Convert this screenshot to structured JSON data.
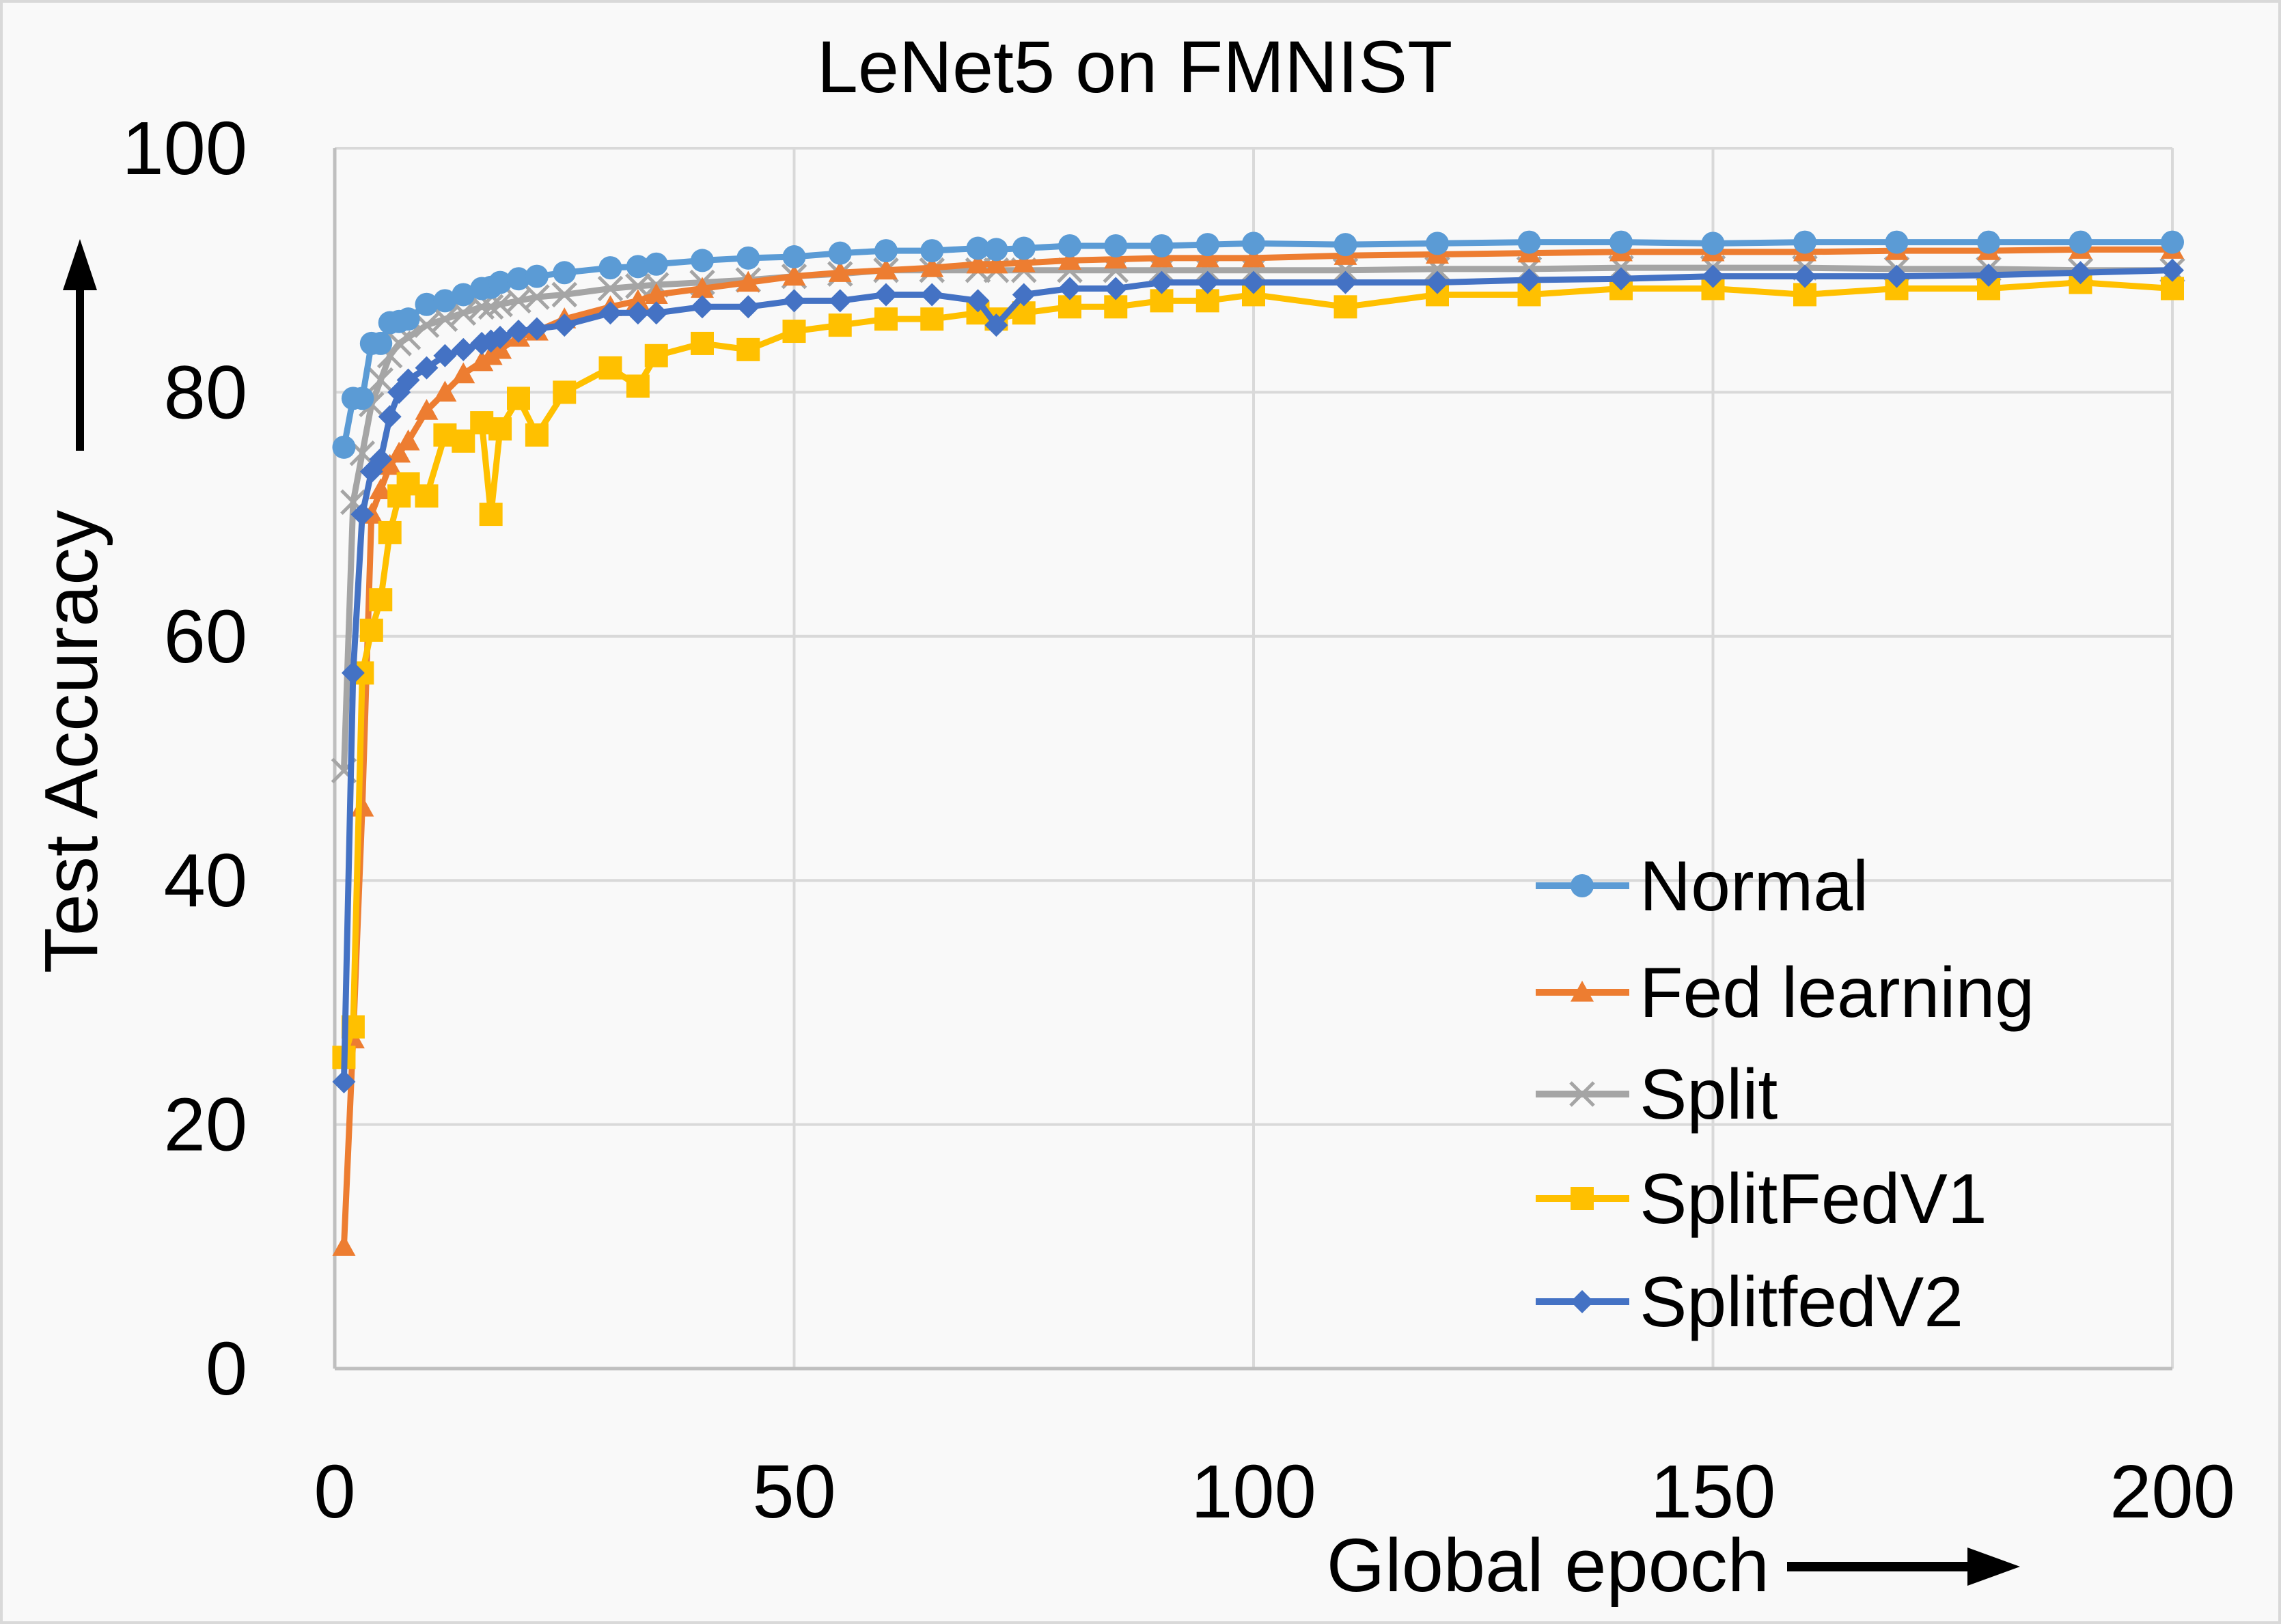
{
  "chart_data": {
    "type": "line",
    "title": "LeNet5 on FMNIST",
    "xlabel": "Global epoch",
    "ylabel": "Test Accuracy",
    "xlim": [
      0,
      200
    ],
    "ylim": [
      0,
      100
    ],
    "xticks": [
      0,
      50,
      100,
      150,
      200
    ],
    "yticks": [
      0,
      20,
      40,
      60,
      80,
      100
    ],
    "grid": true,
    "legend_position": "bottom-right",
    "x": [
      1,
      2,
      3,
      4,
      5,
      6,
      7,
      8,
      10,
      12,
      14,
      16,
      17,
      18,
      20,
      22,
      25,
      30,
      33,
      35,
      40,
      45,
      50,
      55,
      60,
      65,
      70,
      72,
      75,
      80,
      85,
      90,
      95,
      100,
      110,
      120,
      130,
      140,
      150,
      160,
      170,
      180,
      190,
      200
    ],
    "series": [
      {
        "name": "Normal",
        "color": "#5B9BD5",
        "marker": "circle",
        "values": [
          75.5,
          79.5,
          79.5,
          84,
          84,
          85.7,
          85.8,
          86,
          87.2,
          87.5,
          88,
          88.5,
          88.6,
          89,
          89.3,
          89.5,
          89.8,
          90.2,
          90.3,
          90.5,
          90.8,
          91,
          91.1,
          91.4,
          91.6,
          91.6,
          91.8,
          91.7,
          91.8,
          92,
          92,
          92,
          92.1,
          92.2,
          92.1,
          92.2,
          92.3,
          92.3,
          92.2,
          92.3,
          92.3,
          92.3,
          92.3,
          92.3
        ]
      },
      {
        "name": "Fed learning",
        "color": "#ED7D31",
        "marker": "triangle",
        "values": [
          10,
          27,
          46,
          70,
          72,
          74,
          75,
          76,
          78.5,
          80,
          81.5,
          82.5,
          83,
          83.5,
          84.5,
          85,
          86,
          87,
          87.5,
          88,
          88.5,
          89,
          89.5,
          89.8,
          90,
          90.2,
          90.5,
          90.5,
          90.6,
          90.8,
          90.9,
          91,
          91,
          91,
          91.2,
          91.3,
          91.4,
          91.5,
          91.5,
          91.5,
          91.6,
          91.6,
          91.7,
          91.7
        ]
      },
      {
        "name": "Split",
        "color": "#A5A5A5",
        "marker": "x",
        "values": [
          49,
          71,
          75,
          79,
          81,
          83,
          84,
          84.5,
          85.5,
          86,
          86.5,
          87,
          87,
          87.2,
          87.5,
          87.8,
          88,
          88.5,
          88.7,
          88.8,
          89,
          89.2,
          89.5,
          89.7,
          90,
          90,
          90,
          90,
          90,
          90,
          90,
          90,
          90,
          90,
          90,
          90.1,
          90.1,
          90.2,
          90.2,
          90.2,
          90.1,
          90.1,
          90,
          90
        ]
      },
      {
        "name": "SplitFedV1",
        "color": "#FFC000",
        "marker": "square",
        "values": [
          25.5,
          28,
          57,
          60.5,
          63,
          68.5,
          71.5,
          72.5,
          71.5,
          76.5,
          76,
          77.5,
          70,
          77,
          79.5,
          76.5,
          80,
          82,
          80.5,
          83,
          84,
          83.5,
          85,
          85.5,
          86,
          86,
          86.5,
          86,
          86.5,
          87,
          87,
          87.5,
          87.5,
          88,
          87,
          88,
          88,
          88.5,
          88.5,
          88,
          88.5,
          88.5,
          89,
          88.5
        ]
      },
      {
        "name": "SplitfedV2",
        "color": "#4472C4",
        "marker": "diamond",
        "values": [
          23.5,
          57,
          70,
          73.5,
          74.5,
          78,
          80,
          81,
          82,
          83,
          83.5,
          84,
          84.2,
          84.5,
          85,
          85.2,
          85.5,
          86.5,
          86.5,
          86.5,
          87,
          87,
          87.5,
          87.5,
          88,
          88,
          87.5,
          85.5,
          88,
          88.5,
          88.5,
          89,
          89,
          89,
          89,
          89,
          89.2,
          89.3,
          89.5,
          89.5,
          89.5,
          89.6,
          89.8,
          90
        ]
      }
    ]
  }
}
